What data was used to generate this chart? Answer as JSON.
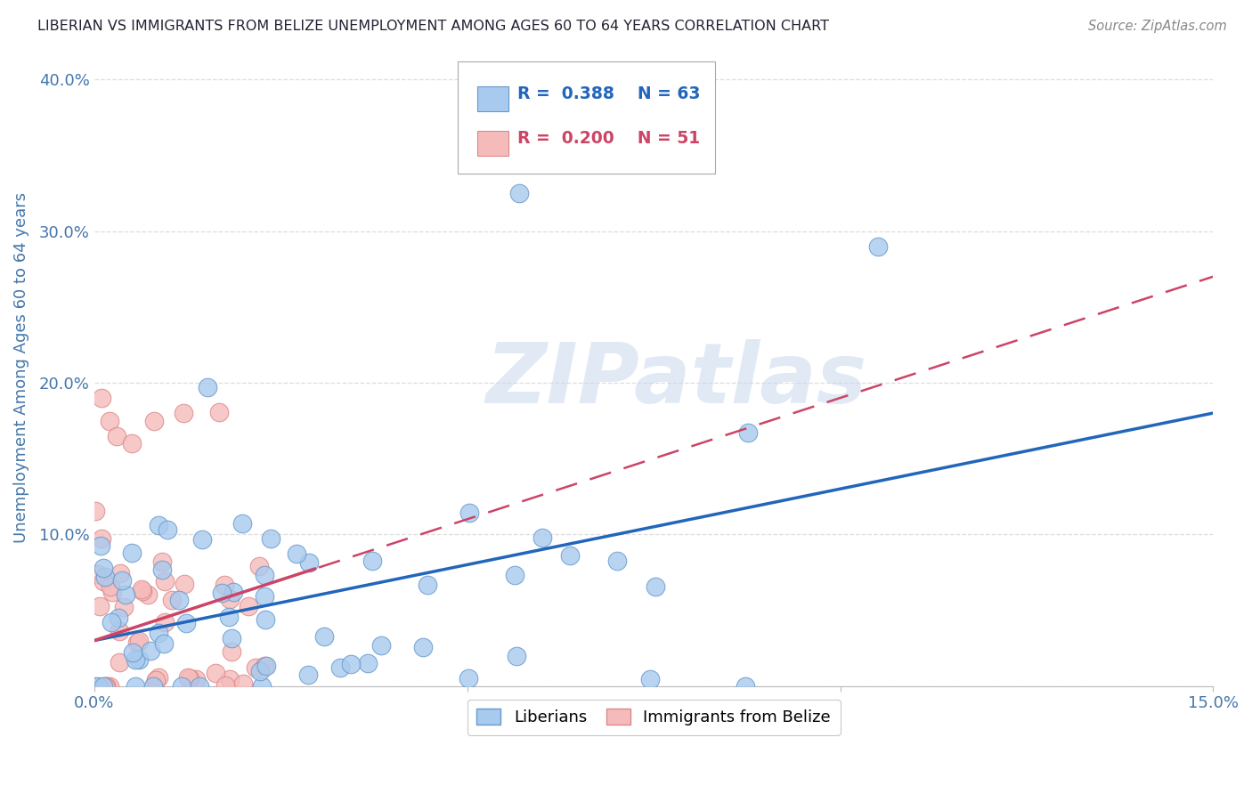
{
  "title": "LIBERIAN VS IMMIGRANTS FROM BELIZE UNEMPLOYMENT AMONG AGES 60 TO 64 YEARS CORRELATION CHART",
  "source": "Source: ZipAtlas.com",
  "ylabel": "Unemployment Among Ages 60 to 64 years",
  "xlim": [
    0,
    0.15
  ],
  "ylim": [
    0,
    0.42
  ],
  "xticks": [
    0.0,
    0.05,
    0.1,
    0.15
  ],
  "yticks": [
    0.0,
    0.1,
    0.2,
    0.3,
    0.4
  ],
  "xticklabels": [
    "0.0%",
    "",
    "",
    "15.0%"
  ],
  "yticklabels": [
    "",
    "10.0%",
    "20.0%",
    "30.0%",
    "40.0%"
  ],
  "series1_color": "#A8CAEE",
  "series1_edge": "#6699CC",
  "series2_color": "#F5BBBB",
  "series2_edge": "#DD8888",
  "trendline1_color": "#2266BB",
  "trendline2_color": "#CC4466",
  "watermark": "ZIPatlas",
  "background_color": "#FFFFFF",
  "grid_color": "#CCCCCC",
  "title_color": "#222233",
  "tick_color": "#4477AA",
  "legend_text_color1": "#2266BB",
  "legend_text_color2": "#CC4466"
}
